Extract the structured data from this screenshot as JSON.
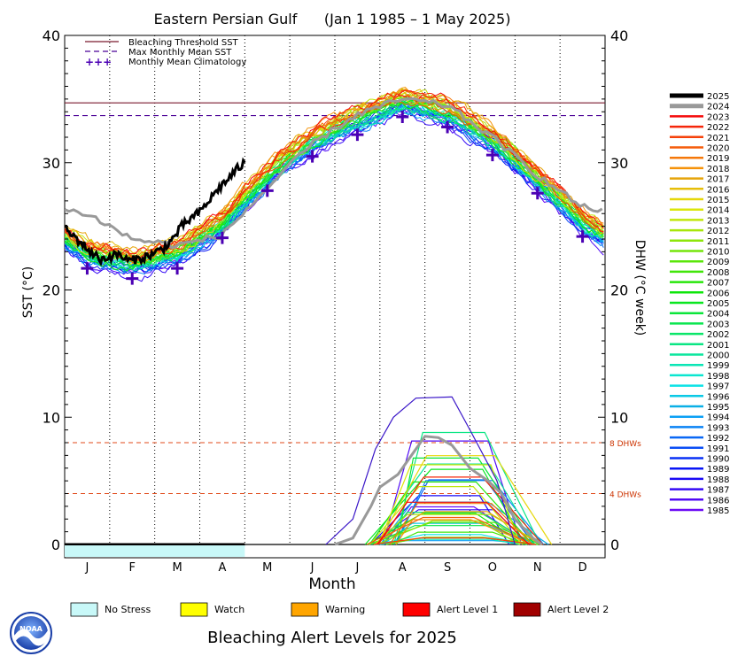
{
  "chart_data": {
    "type": "line",
    "title": "Eastern Persian Gulf      (Jan 1 1985 – 1 May 2025)",
    "xlabel": "Month",
    "ylabel": "SST (°C)",
    "ylabel_right": "DHW (°C week)",
    "ylim": [
      0,
      40
    ],
    "yticks": [
      0,
      10,
      20,
      30,
      40
    ],
    "categories": [
      "J",
      "F",
      "M",
      "A",
      "M",
      "J",
      "J",
      "A",
      "S",
      "O",
      "N",
      "D"
    ],
    "grid": "dotted vertical lines at month boundaries",
    "legend_top": {
      "placement": "top-left",
      "items": [
        {
          "label": "Bleaching Threshold SST",
          "color": "#7a1a2e",
          "style": "solid"
        },
        {
          "label": "Max Monthly Mean SST",
          "color": "#4b0096",
          "style": "dashed"
        },
        {
          "label": "Monthly Mean Climatology",
          "color": "#4b00b4",
          "style": "plus"
        }
      ]
    },
    "bleaching_threshold": 34.7,
    "max_monthly_mean": 33.7,
    "climatology": [
      21.7,
      20.9,
      21.7,
      24.1,
      27.8,
      30.5,
      32.2,
      33.6,
      32.8,
      30.6,
      27.6,
      24.2
    ],
    "dhw_reference_lines": [
      {
        "value": 8,
        "label": "8 DHWs"
      },
      {
        "value": 4,
        "label": "4 DHWs"
      }
    ],
    "series_2025_sst": {
      "name": "2025",
      "x_month": [
        0,
        0.2,
        0.4,
        0.6,
        0.8,
        1.0,
        1.2,
        1.4,
        1.6,
        1.8,
        2.0,
        2.2,
        2.4,
        2.6,
        2.8,
        3.0,
        3.2,
        3.4,
        3.6,
        3.8,
        4.0
      ],
      "values": [
        24.8,
        24.2,
        23.6,
        22.9,
        22.4,
        22.6,
        22.8,
        22.3,
        22.4,
        22.6,
        22.9,
        23.3,
        24.0,
        25.0,
        25.6,
        26.1,
        27.0,
        27.9,
        28.6,
        29.4,
        30.0
      ]
    },
    "series_2024_sst": {
      "name": "2024",
      "values": [
        26.0,
        24.0,
        23.5,
        24.3,
        28.0,
        31.5,
        33.8,
        35.0,
        34.5,
        32.0,
        29.0,
        26.5
      ]
    },
    "series_2024_dhw": {
      "name": "2024",
      "x_month": [
        6.0,
        6.4,
        6.8,
        7.0,
        7.4,
        7.8,
        8.0,
        8.3,
        8.6,
        9.0,
        9.4,
        9.7,
        10.0,
        10.4,
        10.6
      ],
      "values": [
        0,
        0.5,
        3.0,
        4.5,
        5.5,
        7.5,
        8.5,
        8.4,
        7.8,
        6.0,
        5.0,
        4.0,
        2.0,
        0.5,
        0
      ]
    },
    "dhw_max_envelope": {
      "x_month": [
        5.8,
        6.4,
        6.9,
        7.3,
        7.8,
        8.6,
        9.0,
        9.6,
        10.0
      ],
      "values": [
        0,
        2.0,
        7.5,
        10.0,
        11.5,
        11.6,
        9.0,
        5.0,
        0
      ]
    },
    "year_legend": [
      "2025",
      "2024",
      "2023",
      "2022",
      "2021",
      "2020",
      "2019",
      "2018",
      "2017",
      "2016",
      "2015",
      "2014",
      "2013",
      "2012",
      "2011",
      "2010",
      "2009",
      "2008",
      "2007",
      "2006",
      "2005",
      "2004",
      "2003",
      "2002",
      "2001",
      "2000",
      "1999",
      "1998",
      "1997",
      "1996",
      "1995",
      "1994",
      "1993",
      "1992",
      "1991",
      "1990",
      "1989",
      "1988",
      "1987",
      "1986",
      "1985"
    ],
    "alert_band_2025": {
      "status": "No Stress",
      "through_month": 4.0,
      "color": "#c8f8f8"
    }
  },
  "alert_legend": {
    "items": [
      {
        "label": "No Stress",
        "color": "#c8f8f8"
      },
      {
        "label": "Watch",
        "color": "#ffff00"
      },
      {
        "label": "Warning",
        "color": "#ffa500"
      },
      {
        "label": "Alert Level 1",
        "color": "#ff0000"
      },
      {
        "label": "Alert Level 2",
        "color": "#a00000"
      }
    ]
  },
  "footer": {
    "title": "Bleaching Alert Levels for 2025",
    "logo_text": "NOAA"
  }
}
